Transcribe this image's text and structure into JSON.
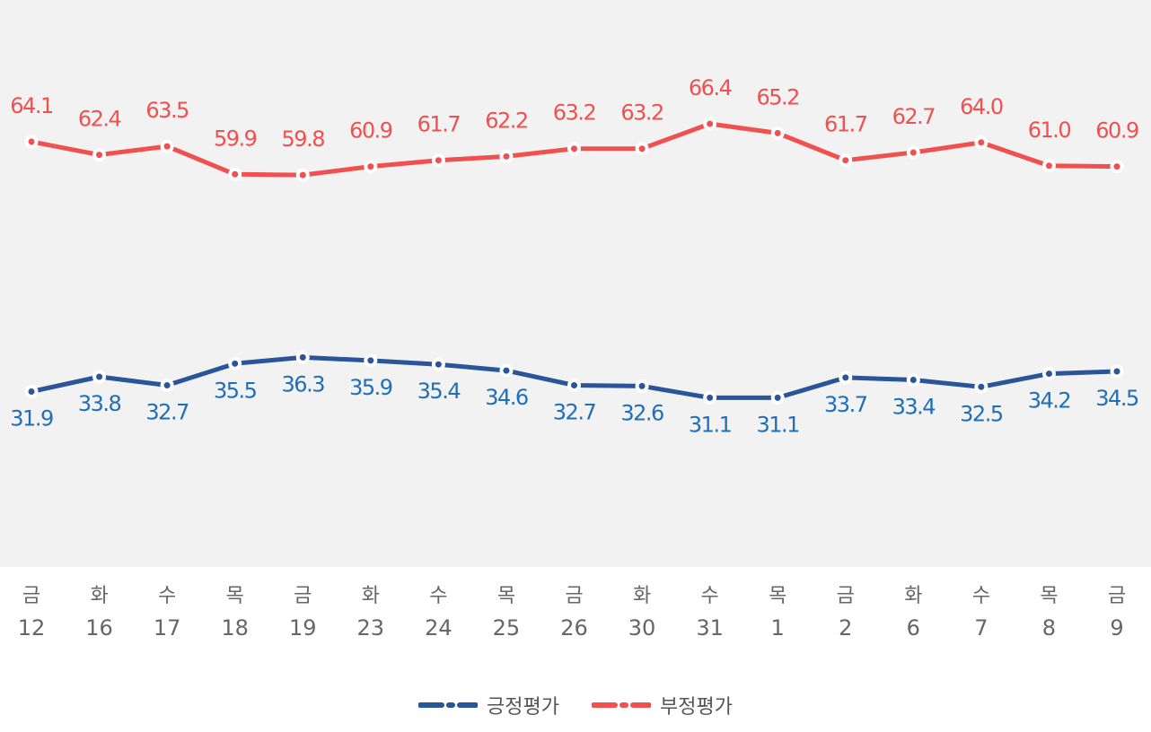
{
  "chart_data": {
    "type": "line",
    "categories": [
      {
        "day": "금",
        "date": "12"
      },
      {
        "day": "화",
        "date": "16"
      },
      {
        "day": "수",
        "date": "17"
      },
      {
        "day": "목",
        "date": "18"
      },
      {
        "day": "금",
        "date": "19"
      },
      {
        "day": "화",
        "date": "23"
      },
      {
        "day": "수",
        "date": "24"
      },
      {
        "day": "목",
        "date": "25"
      },
      {
        "day": "금",
        "date": "26"
      },
      {
        "day": "화",
        "date": "30"
      },
      {
        "day": "수",
        "date": "31"
      },
      {
        "day": "목",
        "date": "1"
      },
      {
        "day": "금",
        "date": "2"
      },
      {
        "day": "화",
        "date": "6"
      },
      {
        "day": "수",
        "date": "7"
      },
      {
        "day": "목",
        "date": "8"
      },
      {
        "day": "금",
        "date": "9"
      }
    ],
    "series": [
      {
        "name": "긍정평가",
        "color": "#2a5599",
        "label_color": "#1f6fb8",
        "labels": [
          "31.9",
          "33.8",
          "32.7",
          "35.5",
          "36.3",
          "35.9",
          "35.4",
          "34.6",
          "32.7",
          "32.6",
          "31.1",
          "31.1",
          "33.7",
          "33.4",
          "32.5",
          "34.2",
          "34.5"
        ],
        "values": [
          31.9,
          33.8,
          32.7,
          35.5,
          36.3,
          35.9,
          35.4,
          34.6,
          32.7,
          32.6,
          31.1,
          31.1,
          33.7,
          33.4,
          32.5,
          34.2,
          34.5
        ]
      },
      {
        "name": "부정평가",
        "color": "#f05050",
        "label_color": "#f05050",
        "labels": [
          "64.1",
          "62.4",
          "63.5",
          "59.9",
          "59.8",
          "60.9",
          "61.7",
          "62.2",
          "63.2",
          "63.2",
          "66.4",
          "65.2",
          "61.7",
          "62.7",
          "64.0",
          "61.0",
          "60.9"
        ],
        "values": [
          64.1,
          62.4,
          63.5,
          59.9,
          59.8,
          60.9,
          61.7,
          62.2,
          63.2,
          63.2,
          66.4,
          65.2,
          61.7,
          62.7,
          64.0,
          61.0,
          60.9
        ]
      }
    ],
    "plot_background": "#f2f2f2",
    "ylim": [
      25,
      70
    ],
    "legend_position": "bottom-center",
    "grid": false
  }
}
